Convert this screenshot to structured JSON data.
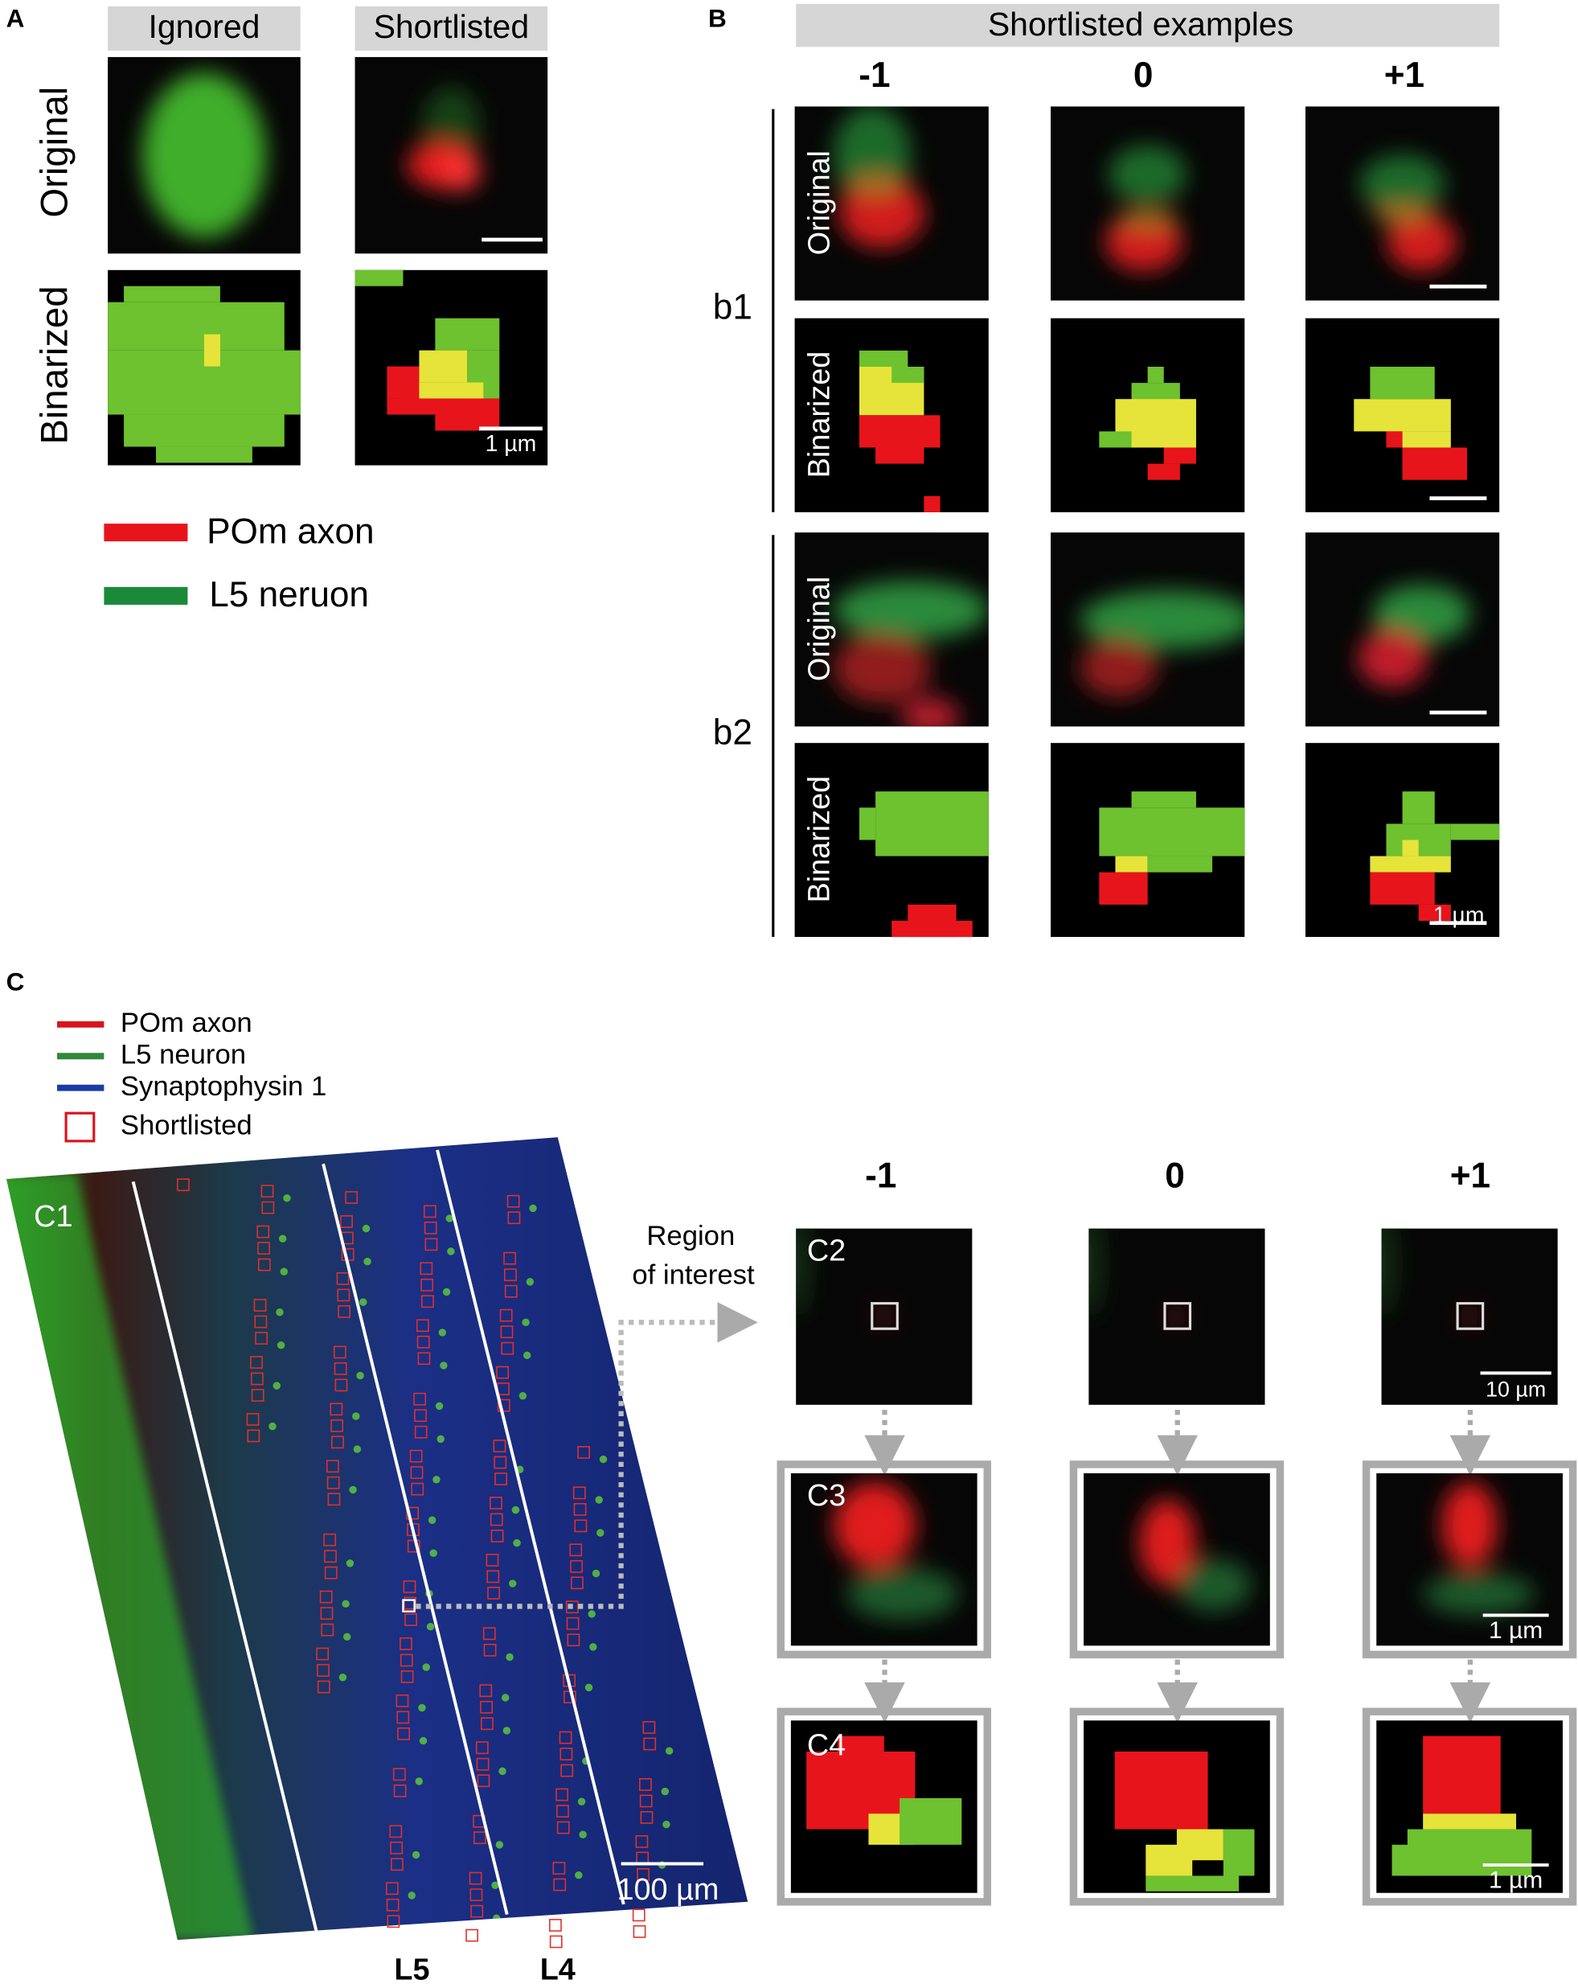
{
  "panel_a": {
    "label": "A",
    "columns": [
      "Ignored",
      "Shortlisted"
    ],
    "rows": [
      "Original",
      "Binarized"
    ],
    "scale_bar": "1 µm",
    "legend": [
      "POm axon",
      "L5 neruon"
    ]
  },
  "panel_b": {
    "label": "B",
    "title": "Shortlisted examples",
    "columns": [
      "-1",
      "0",
      "+1"
    ],
    "groups": [
      {
        "label": "b1",
        "rows": [
          "Original",
          "Binarized"
        ]
      },
      {
        "label": "b2",
        "rows": [
          "Original",
          "Binarized"
        ]
      }
    ],
    "scale_bar": "1 µm"
  },
  "panel_c": {
    "label": "C",
    "legend": [
      "POm axon",
      "L5 neuron",
      "Synaptophysin 1",
      "Shortlisted"
    ],
    "overview_label": "C1",
    "overview_scale_bar": "100 µm",
    "layers": [
      "L5",
      "L4"
    ],
    "roi_label": [
      "Region",
      "of interest"
    ],
    "columns": [
      "-1",
      "0",
      "+1"
    ],
    "row_labels": [
      "C2",
      "C3",
      "C4"
    ],
    "scale_bars": [
      "10 µm",
      "1 µm",
      "1 µm"
    ]
  }
}
